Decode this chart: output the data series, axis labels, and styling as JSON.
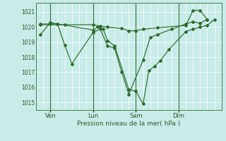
{
  "bg_color": "#c8ece8",
  "grid_color": "#ffffff",
  "line_color": "#2d6a2d",
  "text_color": "#2d5a2d",
  "ylabel_vals": [
    1015,
    1016,
    1017,
    1018,
    1019,
    1020,
    1021
  ],
  "ylim": [
    1014.5,
    1021.6
  ],
  "xlabel": "Pression niveau de la mer( hPa )",
  "xtick_labels": [
    "Ven",
    "Lun",
    "Sam",
    "Dim"
  ],
  "xtick_positions": [
    1,
    4,
    7,
    10
  ],
  "vline_positions": [
    1,
    4,
    7,
    10
  ],
  "xlim": [
    0,
    13
  ],
  "series1_x": [
    0.3,
    1.0,
    1.5,
    4.0,
    4.3,
    4.7,
    5.0,
    5.5,
    6.5,
    7.0,
    7.5,
    7.9,
    8.3,
    8.7,
    9.3,
    10.5,
    11.0,
    11.5,
    12.0,
    12.5
  ],
  "series1_y": [
    1019.5,
    1020.3,
    1020.2,
    1019.8,
    1020.0,
    1019.85,
    1019.1,
    1018.75,
    1015.85,
    1015.75,
    1014.9,
    1017.1,
    1017.4,
    1017.75,
    1018.5,
    1019.7,
    1019.85,
    1020.0,
    1020.1,
    1020.5
  ],
  "series2_x": [
    0.3,
    1.0,
    1.5,
    2.0,
    2.5,
    4.0,
    4.5,
    5.0,
    5.5,
    6.0,
    6.5,
    7.5,
    8.0,
    8.5,
    9.5,
    10.5,
    11.0,
    11.5,
    12.0
  ],
  "series2_y": [
    1020.2,
    1020.2,
    1020.2,
    1018.8,
    1017.55,
    1019.65,
    1019.85,
    1018.75,
    1018.6,
    1017.0,
    1015.55,
    1017.8,
    1019.3,
    1019.5,
    1019.85,
    1020.2,
    1020.35,
    1020.25,
    1020.5
  ],
  "series3_x": [
    0.3,
    2.0,
    4.0,
    4.5,
    5.0,
    6.0,
    6.5,
    7.0,
    7.5,
    8.5,
    10.5,
    11.0,
    11.5,
    12.0
  ],
  "series3_y": [
    1020.15,
    1020.15,
    1020.15,
    1020.05,
    1020.0,
    1019.9,
    1019.75,
    1019.75,
    1019.85,
    1019.95,
    1020.1,
    1021.1,
    1021.1,
    1020.5
  ]
}
